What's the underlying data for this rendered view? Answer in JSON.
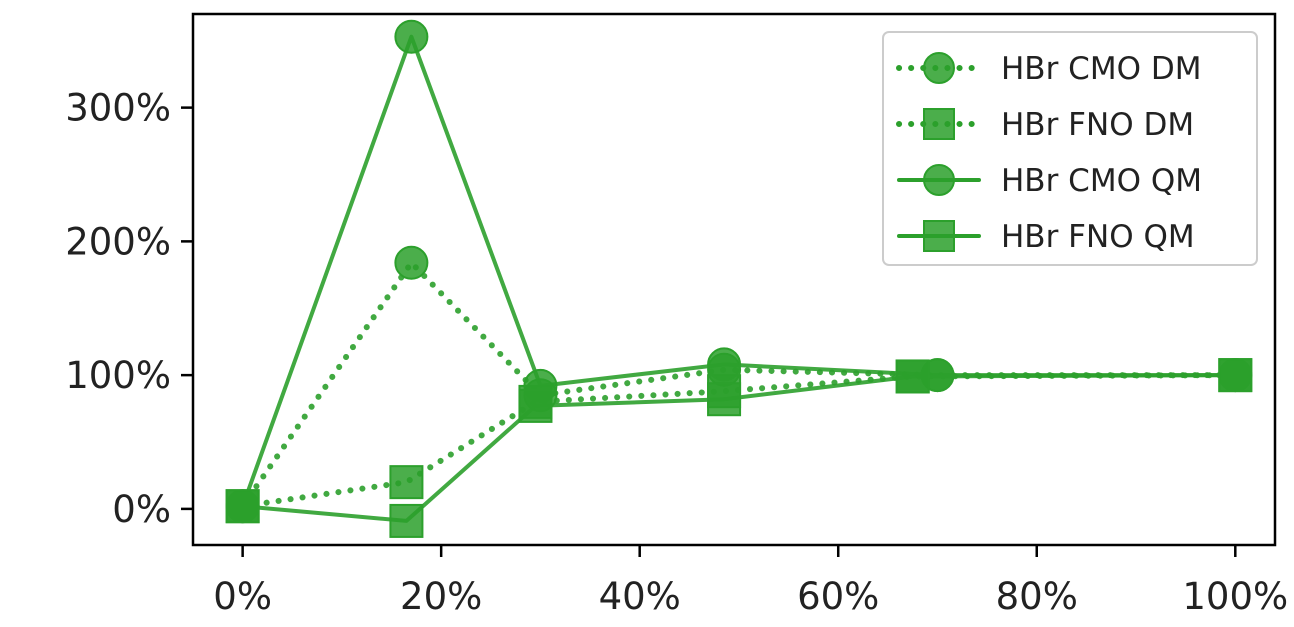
{
  "chart_data": {
    "type": "line",
    "title": "",
    "xlabel": "",
    "ylabel": "",
    "xlim": [
      -5,
      104
    ],
    "ylim": [
      -27,
      370
    ],
    "xticks": [
      0,
      20,
      40,
      60,
      80,
      100
    ],
    "xtick_labels": [
      "0%",
      "20%",
      "40%",
      "60%",
      "80%",
      "100%"
    ],
    "yticks": [
      0,
      100,
      200,
      300
    ],
    "ytick_labels": [
      "0%",
      "100%",
      "200%",
      "300%"
    ],
    "grid": false,
    "legend_position": "top-right",
    "color": "#2ca02c",
    "series": [
      {
        "name": "HBr CMO DM",
        "marker": "circle",
        "linestyle": "dotted",
        "x": [
          0,
          17,
          30,
          48.5,
          70,
          100
        ],
        "y": [
          2,
          184,
          85,
          104,
          100,
          100
        ]
      },
      {
        "name": "HBr FNO DM",
        "marker": "square",
        "linestyle": "dotted",
        "x": [
          0,
          16.5,
          29.5,
          48.5,
          67.5,
          100
        ],
        "y": [
          2,
          20,
          80,
          88,
          99,
          100
        ]
      },
      {
        "name": "HBr CMO QM",
        "marker": "circle",
        "linestyle": "solid",
        "x": [
          0,
          17,
          30,
          48.5,
          70,
          100
        ],
        "y": [
          2,
          353,
          92,
          108,
          100,
          100
        ]
      },
      {
        "name": "HBr FNO QM",
        "marker": "square",
        "linestyle": "solid",
        "x": [
          0,
          16.5,
          29.5,
          48.5,
          67.5,
          100
        ],
        "y": [
          2,
          -9,
          77,
          82,
          99,
          100
        ]
      }
    ]
  }
}
